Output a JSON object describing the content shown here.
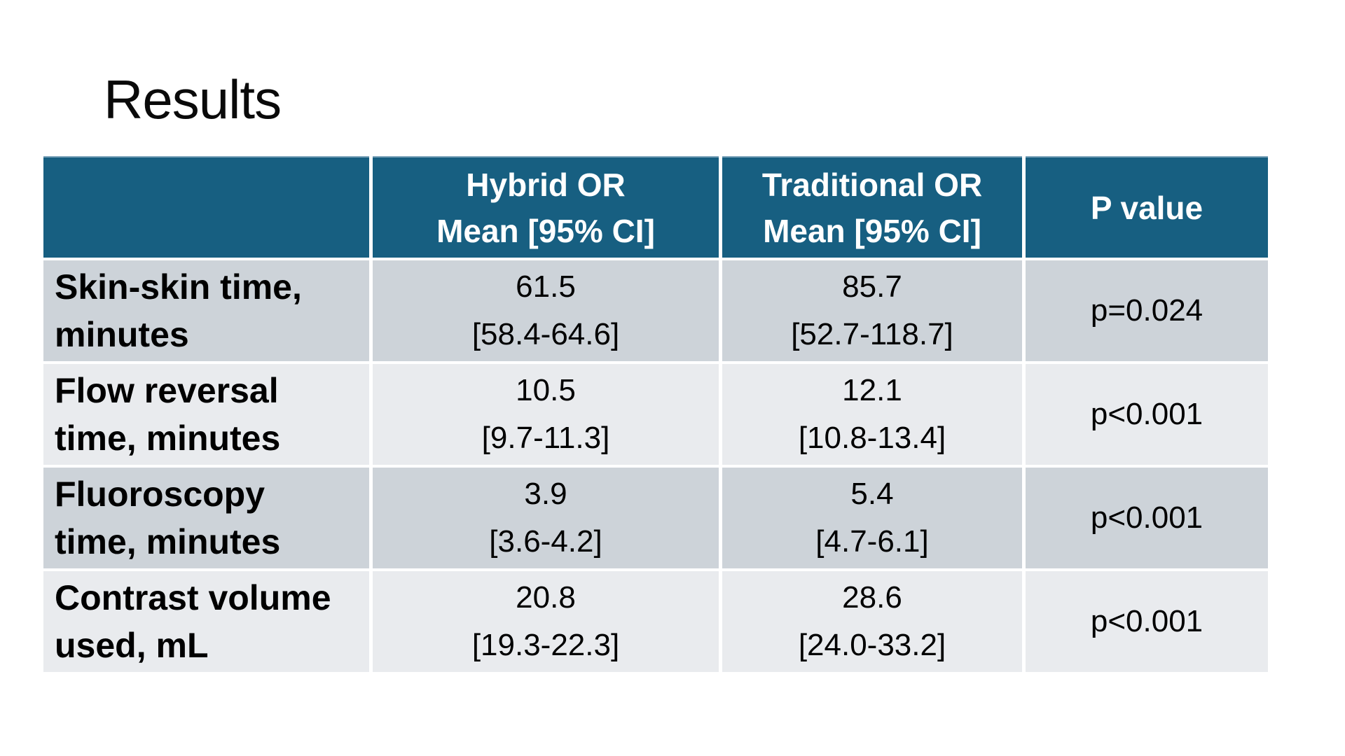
{
  "colors": {
    "header_bg": "#175F81",
    "header_text": "#FFFFFF",
    "row_dark": "#CDD3D9",
    "row_light": "#E9EBEE",
    "body_text": "#000000",
    "border_accent": "#7FA6BB",
    "slide_bg": "#FFFFFF"
  },
  "slide": {
    "title": "Results"
  },
  "table": {
    "header": {
      "col0": "",
      "col1": [
        "Hybrid OR",
        "Mean [95% CI]"
      ],
      "col2": [
        "Traditional OR",
        "Mean [95% CI]"
      ],
      "col3": "P value"
    },
    "rows": [
      {
        "label": [
          "Skin-skin time,",
          "minutes"
        ],
        "hybrid": [
          "61.5",
          "[58.4-64.6]"
        ],
        "traditional": [
          "85.7",
          "[52.7-118.7]"
        ],
        "p": "p=0.024"
      },
      {
        "label": [
          "Flow reversal",
          "time, minutes"
        ],
        "hybrid": [
          "10.5",
          "[9.7-11.3]"
        ],
        "traditional": [
          "12.1",
          "[10.8-13.4]"
        ],
        "p": "p<0.001"
      },
      {
        "label": [
          "Fluoroscopy",
          "time, minutes"
        ],
        "hybrid": [
          "3.9",
          "[3.6-4.2]"
        ],
        "traditional": [
          "5.4",
          "[4.7-6.1]"
        ],
        "p": "p<0.001"
      },
      {
        "label": [
          "Contrast volume",
          "used, mL"
        ],
        "hybrid": [
          "20.8",
          "[19.3-22.3]"
        ],
        "traditional": [
          "28.6",
          "[24.0-33.2]"
        ],
        "p": "p<0.001"
      }
    ]
  },
  "chart_data": {
    "type": "table",
    "title": "Results",
    "columns": [
      "",
      "Hybrid OR Mean [95% CI]",
      "Traditional OR Mean [95% CI]",
      "P value"
    ],
    "rows": [
      [
        "Skin-skin time, minutes",
        "61.5 [58.4-64.6]",
        "85.7 [52.7-118.7]",
        "p=0.024"
      ],
      [
        "Flow reversal time, minutes",
        "10.5 [9.7-11.3]",
        "12.1 [10.8-13.4]",
        "p<0.001"
      ],
      [
        "Fluoroscopy time, minutes",
        "3.9 [3.6-4.2]",
        "5.4 [4.7-6.1]",
        "p<0.001"
      ],
      [
        "Contrast volume used, mL",
        "20.8 [19.3-22.3]",
        "28.6 [24.0-33.2]",
        "p<0.001"
      ]
    ]
  }
}
